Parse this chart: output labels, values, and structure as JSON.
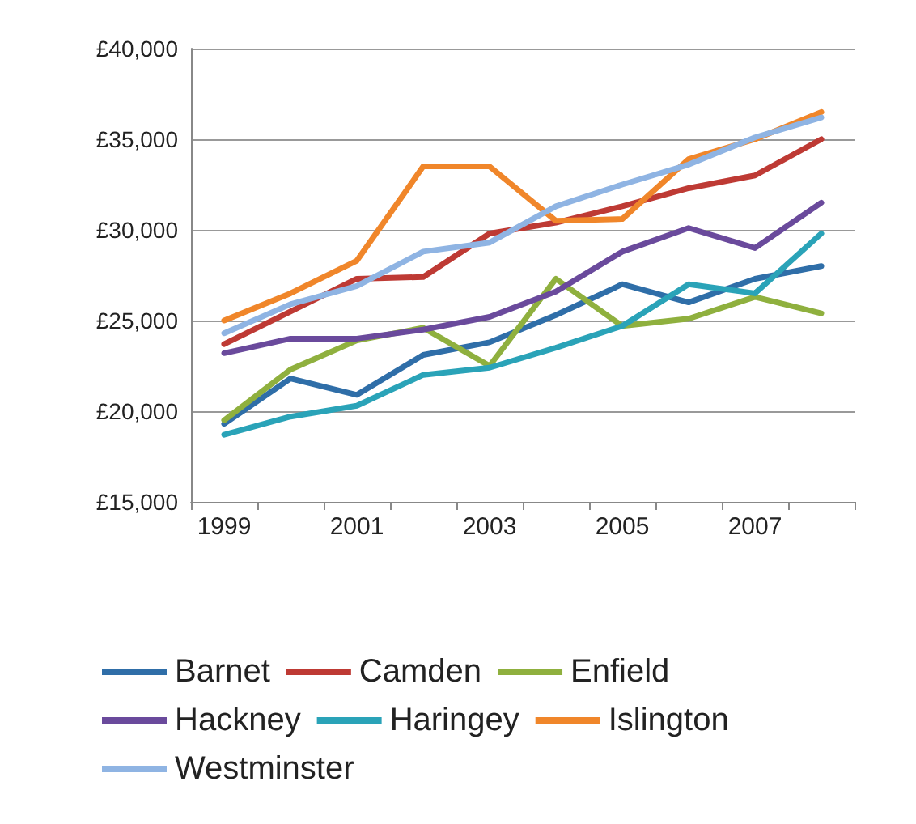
{
  "chart_data": {
    "type": "line",
    "categories": [
      "1999",
      null,
      "2001",
      null,
      "2003",
      null,
      "2005",
      null,
      "2007",
      null
    ],
    "series": [
      {
        "name": "Barnet",
        "color": "#2f6ea8",
        "values": [
          19300,
          21800,
          20900,
          23100,
          23800,
          25300,
          27000,
          26000,
          27300,
          28000
        ]
      },
      {
        "name": "Camden",
        "color": "#be3a34",
        "values": [
          23700,
          25500,
          27300,
          27400,
          29800,
          30400,
          31300,
          32300,
          33000,
          35000
        ]
      },
      {
        "name": "Enfield",
        "color": "#8fb03e",
        "values": [
          19500,
          22300,
          23900,
          24600,
          22500,
          27300,
          24700,
          25100,
          26300,
          25400
        ]
      },
      {
        "name": "Hackney",
        "color": "#6a4a9c",
        "values": [
          23200,
          24000,
          24000,
          24500,
          25200,
          26600,
          28800,
          30100,
          29000,
          31500
        ]
      },
      {
        "name": "Haringey",
        "color": "#2aa3b8",
        "values": [
          18700,
          19700,
          20300,
          22000,
          22400,
          23500,
          24700,
          27000,
          26500,
          29800
        ]
      },
      {
        "name": "Islington",
        "color": "#f0862a",
        "values": [
          25000,
          26500,
          28300,
          33500,
          33500,
          30500,
          30600,
          33900,
          35000,
          36500
        ]
      },
      {
        "name": "Westminster",
        "color": "#8fb4e3",
        "values": [
          24300,
          25900,
          26900,
          28800,
          29300,
          31300,
          32500,
          33600,
          35100,
          36200
        ]
      }
    ],
    "ylim": [
      15000,
      40000
    ],
    "yticks": [
      {
        "value": 15000,
        "label": "£15,000"
      },
      {
        "value": 20000,
        "label": "£20,000"
      },
      {
        "value": 25000,
        "label": "£25,000"
      },
      {
        "value": 30000,
        "label": "£30,000"
      },
      {
        "value": 35000,
        "label": "£35,000"
      },
      {
        "value": 40000,
        "label": "£40,000"
      }
    ],
    "grid": "y",
    "legend": "bottom",
    "marker": "none",
    "line_style": "solid"
  }
}
